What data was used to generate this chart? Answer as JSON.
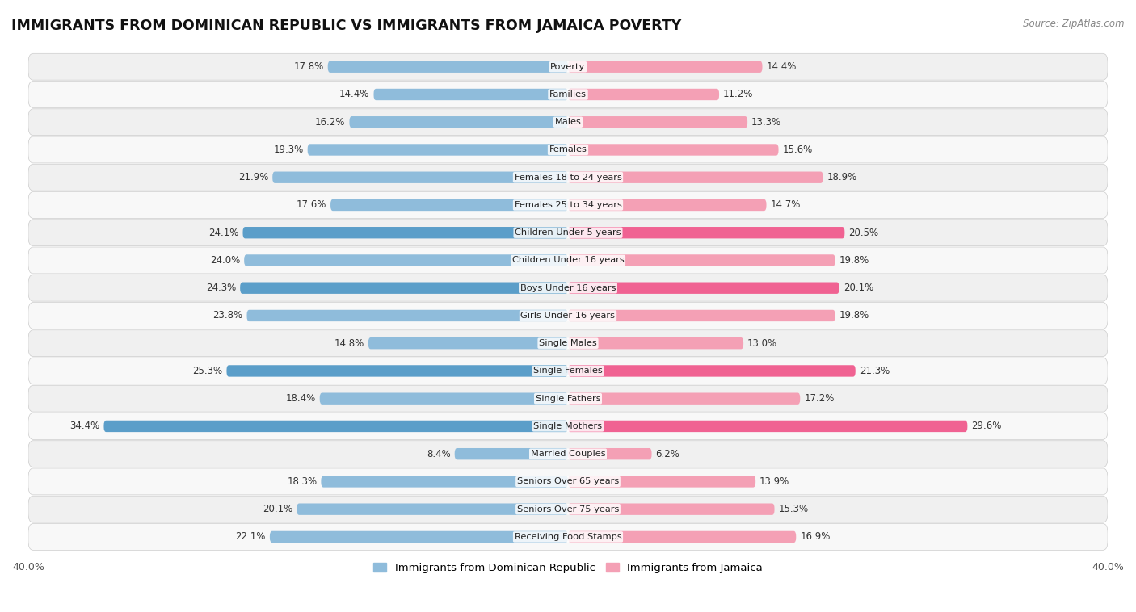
{
  "title": "IMMIGRANTS FROM DOMINICAN REPUBLIC VS IMMIGRANTS FROM JAMAICA POVERTY",
  "source": "Source: ZipAtlas.com",
  "categories": [
    "Poverty",
    "Families",
    "Males",
    "Females",
    "Females 18 to 24 years",
    "Females 25 to 34 years",
    "Children Under 5 years",
    "Children Under 16 years",
    "Boys Under 16 years",
    "Girls Under 16 years",
    "Single Males",
    "Single Females",
    "Single Fathers",
    "Single Mothers",
    "Married Couples",
    "Seniors Over 65 years",
    "Seniors Over 75 years",
    "Receiving Food Stamps"
  ],
  "dominican": [
    17.8,
    14.4,
    16.2,
    19.3,
    21.9,
    17.6,
    24.1,
    24.0,
    24.3,
    23.8,
    14.8,
    25.3,
    18.4,
    34.4,
    8.4,
    18.3,
    20.1,
    22.1
  ],
  "jamaica": [
    14.4,
    11.2,
    13.3,
    15.6,
    18.9,
    14.7,
    20.5,
    19.8,
    20.1,
    19.8,
    13.0,
    21.3,
    17.2,
    29.6,
    6.2,
    13.9,
    15.3,
    16.9
  ],
  "dominican_color_default": "#8fbcdb",
  "dominican_color_highlight": "#5b9ec9",
  "jamaica_color_default": "#f4a0b5",
  "jamaica_color_highlight": "#f06292",
  "highlight_indices": [
    6,
    8,
    11,
    13
  ],
  "xlim": 40.0,
  "bar_height": 0.42,
  "row_alt_colors": [
    "#f7f7f7",
    "#eeeeee"
  ],
  "legend_label_dominican": "Immigrants from Dominican Republic",
  "legend_label_jamaica": "Immigrants from Jamaica"
}
